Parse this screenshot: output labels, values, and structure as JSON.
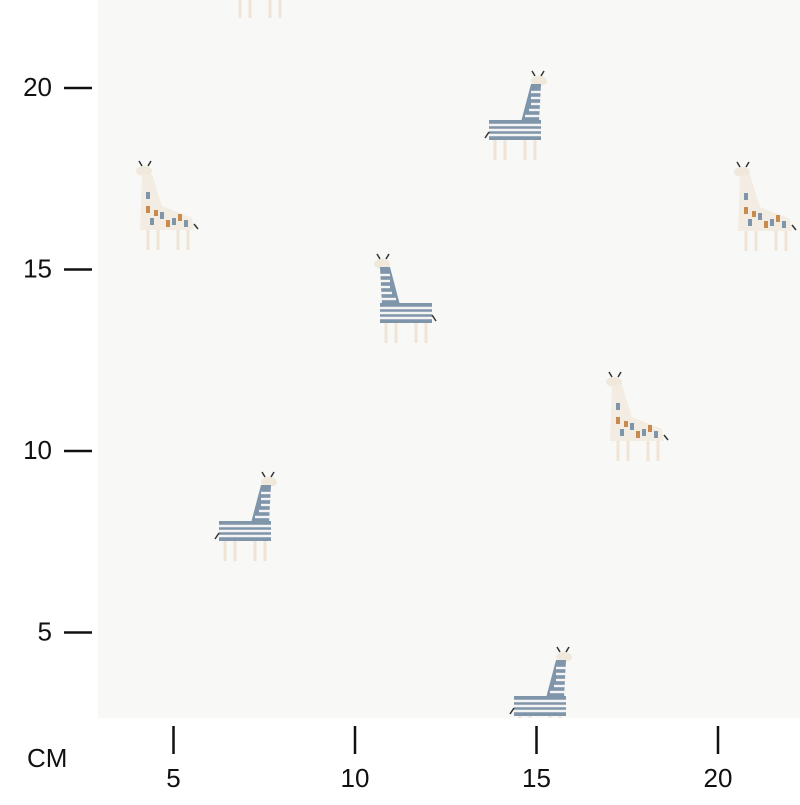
{
  "ruler": {
    "unit": "CM",
    "vertical_ticks": [
      20,
      15,
      10,
      5
    ],
    "horizontal_ticks": [
      5,
      10,
      15,
      20
    ]
  }
}
